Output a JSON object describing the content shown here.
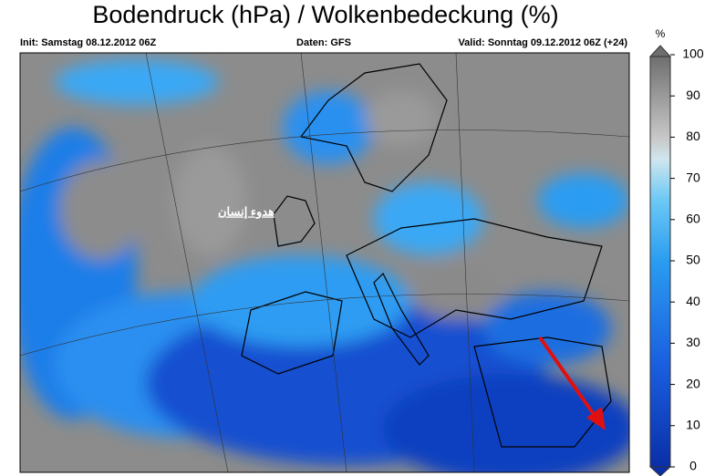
{
  "header": {
    "title": "Bodendruck (hPa) / Wolkenbedeckung (%)",
    "init": "Init: Samstag 08.12.2012 06Z",
    "source": "Daten: GFS",
    "valid": "Valid: Sonntag 09.12.2012 06Z (+24)"
  },
  "annotation": "هدوء إنسان",
  "colorbar": {
    "unit": "%",
    "ticks": [
      0,
      10,
      20,
      30,
      40,
      50,
      60,
      70,
      80,
      90,
      100
    ],
    "lim": [
      0,
      100
    ]
  }
}
